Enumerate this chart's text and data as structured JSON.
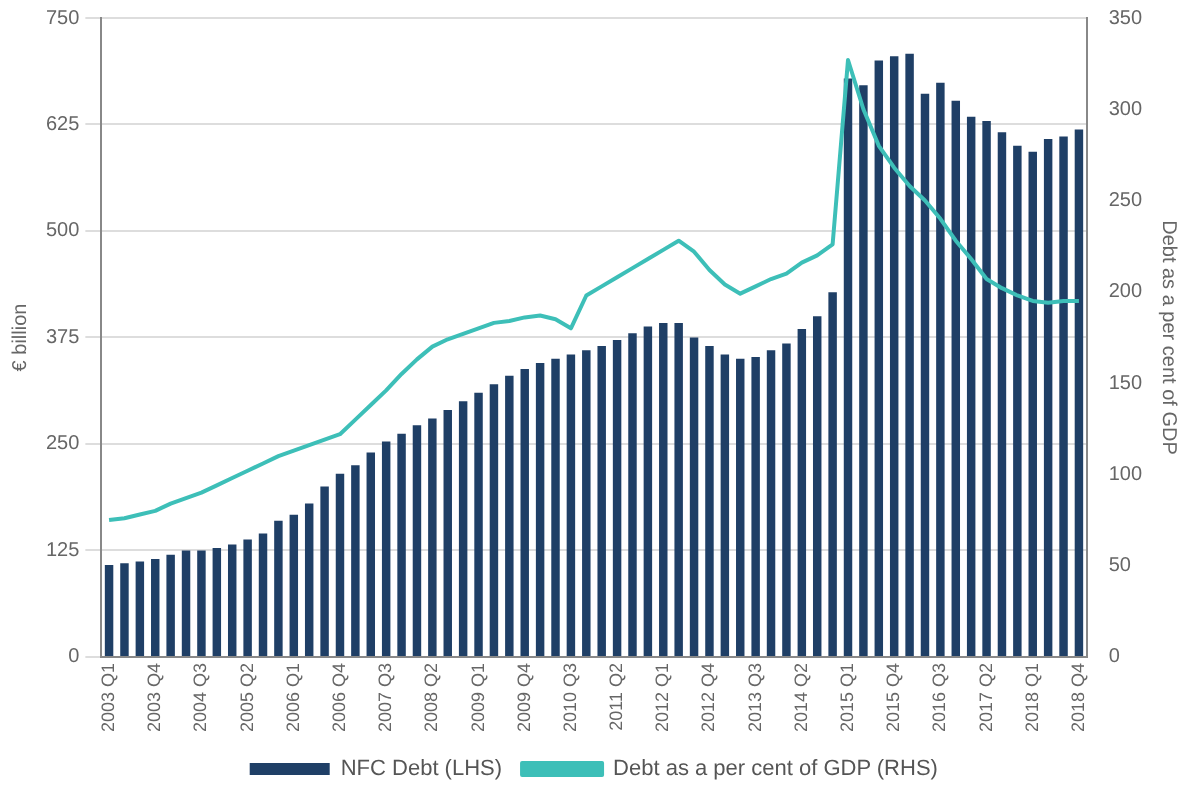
{
  "chart_data": {
    "type": "bar",
    "ylabel": "€ billion",
    "y2label": "Debt as a per cent of GDP",
    "categories": [
      "2003 Q1",
      null,
      null,
      "2003 Q4",
      null,
      null,
      "2004 Q3",
      null,
      null,
      "2005 Q2",
      null,
      null,
      "2006 Q1",
      null,
      null,
      "2006 Q4",
      null,
      null,
      "2007 Q3",
      null,
      null,
      "2008 Q2",
      null,
      null,
      "2009 Q1",
      null,
      null,
      "2009 Q4",
      null,
      null,
      "2010 Q3",
      null,
      null,
      "2011 Q2",
      null,
      null,
      "2012 Q1",
      null,
      null,
      "2012 Q4",
      null,
      null,
      "2013 Q3",
      null,
      null,
      "2014 Q2",
      null,
      null,
      "2015 Q1",
      null,
      null,
      "2015 Q4",
      null,
      null,
      "2016 Q3",
      null,
      null,
      "2017 Q2",
      null,
      null,
      "2018 Q1",
      null,
      null,
      "2018 Q4"
    ],
    "series": [
      {
        "name": "NFC Debt (LHS)",
        "color": "#1f3f66",
        "values": [
          108,
          110,
          112,
          115,
          120,
          125,
          125,
          128,
          132,
          138,
          145,
          160,
          167,
          180,
          200,
          215,
          225,
          240,
          253,
          262,
          272,
          280,
          290,
          300,
          310,
          320,
          330,
          338,
          345,
          350,
          355,
          360,
          365,
          372,
          380,
          388,
          392,
          392,
          375,
          365,
          355,
          350,
          352,
          360,
          368,
          385,
          400,
          428,
          679,
          671,
          700,
          705,
          708,
          661,
          674,
          653,
          634,
          629,
          616,
          600,
          593,
          608,
          611,
          619
        ]
      },
      {
        "name": "Debt as a per cent of GDP (RHS)",
        "type": "line",
        "axis": "y2",
        "color": "#3dbfb8",
        "values": [
          75,
          76,
          78,
          80,
          84,
          87,
          90,
          94,
          98,
          102,
          106,
          110,
          113,
          116,
          119,
          122,
          130,
          138,
          146,
          155,
          163,
          170,
          174,
          177,
          180,
          183,
          184,
          186,
          187,
          185,
          180,
          198,
          203,
          208,
          213,
          218,
          223,
          228,
          222,
          212,
          204,
          199,
          203,
          207,
          210,
          216,
          220,
          226,
          327,
          300,
          280,
          268,
          258,
          250,
          240,
          228,
          218,
          207,
          202,
          198,
          195,
          194,
          195,
          195
        ]
      }
    ],
    "ylim": [
      0,
      750
    ],
    "yticks": [
      0,
      125,
      250,
      375,
      500,
      625,
      750
    ],
    "y2lim": [
      0,
      350
    ],
    "y2ticks": [
      0,
      50,
      100,
      150,
      200,
      250,
      300,
      350
    ],
    "grid": "y",
    "legend": "bottom"
  }
}
